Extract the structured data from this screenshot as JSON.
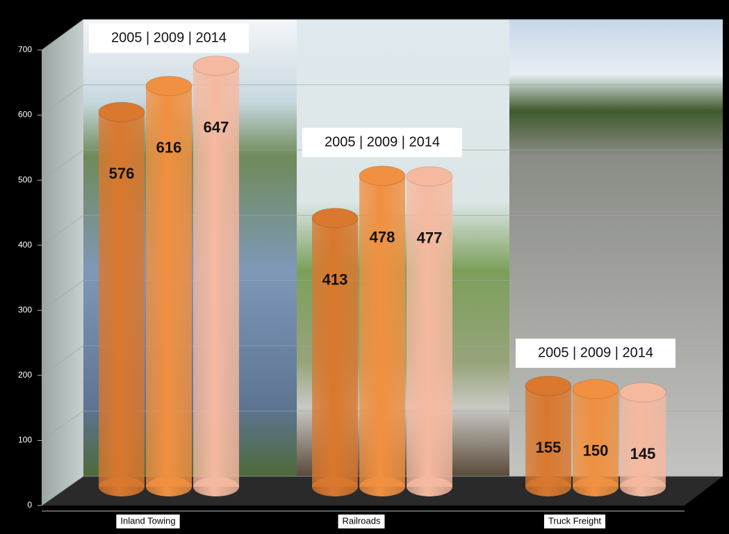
{
  "chart_data": {
    "type": "cylinder-bar",
    "categories": [
      "Inland Towing",
      "Railroads",
      "Truck Freight"
    ],
    "annotations": [
      "2005 | 2009 | 2014",
      "2005 | 2009 | 2014",
      "2005 | 2009 | 2014"
    ],
    "series": [
      {
        "color": "#d9782e",
        "values": [
          576,
          413,
          155
        ]
      },
      {
        "color": "#f09040",
        "values": [
          616,
          478,
          150
        ]
      },
      {
        "color": "#f5b9a0",
        "values": [
          647,
          477,
          145
        ]
      }
    ],
    "ylim": [
      0,
      700
    ],
    "yticks": [
      0,
      100,
      200,
      300,
      400,
      500,
      600,
      700
    ],
    "grid": true
  }
}
